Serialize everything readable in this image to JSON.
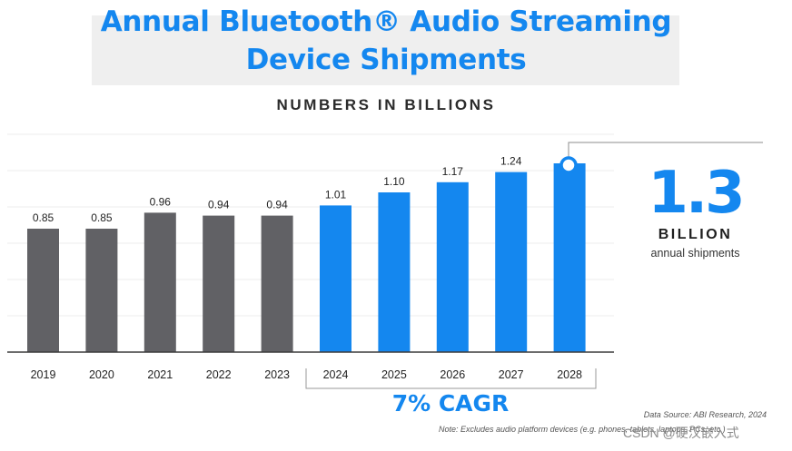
{
  "header": {
    "title_line1": "Annual Bluetooth® Audio Streaming",
    "title_line2": "Device Shipments",
    "subtitle": "NUMBERS IN BILLIONS"
  },
  "chart_data": {
    "type": "bar",
    "title": "Annual Bluetooth® Audio Streaming Device Shipments",
    "subtitle": "NUMBERS IN BILLIONS",
    "xlabel": "",
    "ylabel": "",
    "ylim": [
      0,
      1.5
    ],
    "grid": true,
    "categories": [
      "2019",
      "2020",
      "2021",
      "2022",
      "2023",
      "2024",
      "2025",
      "2026",
      "2027",
      "2028"
    ],
    "values": [
      0.85,
      0.85,
      0.96,
      0.94,
      0.94,
      1.01,
      1.1,
      1.17,
      1.24,
      1.3
    ],
    "labels": [
      "0.85",
      "0.85",
      "0.96",
      "0.94",
      "0.94",
      "1.01",
      "1.10",
      "1.17",
      "1.24",
      ""
    ],
    "series_kind": [
      "actual",
      "actual",
      "actual",
      "actual",
      "actual",
      "forecast",
      "forecast",
      "forecast",
      "forecast",
      "forecast"
    ],
    "colors": {
      "actual": "#616165",
      "forecast": "#1487ef"
    },
    "bracket_label": "7% CAGR",
    "bracket_range": [
      "2024",
      "2028"
    ]
  },
  "callout": {
    "value": "1.3",
    "unit": "BILLION",
    "caption": "annual shipments"
  },
  "footer": {
    "source": "Data Source: ABI Research, 2024",
    "note": "Note: Excludes audio platform devices (e.g. phones, tablets, laptops, PCs, etc.)",
    "watermark": "CSDN @硬汉嵌入式"
  }
}
